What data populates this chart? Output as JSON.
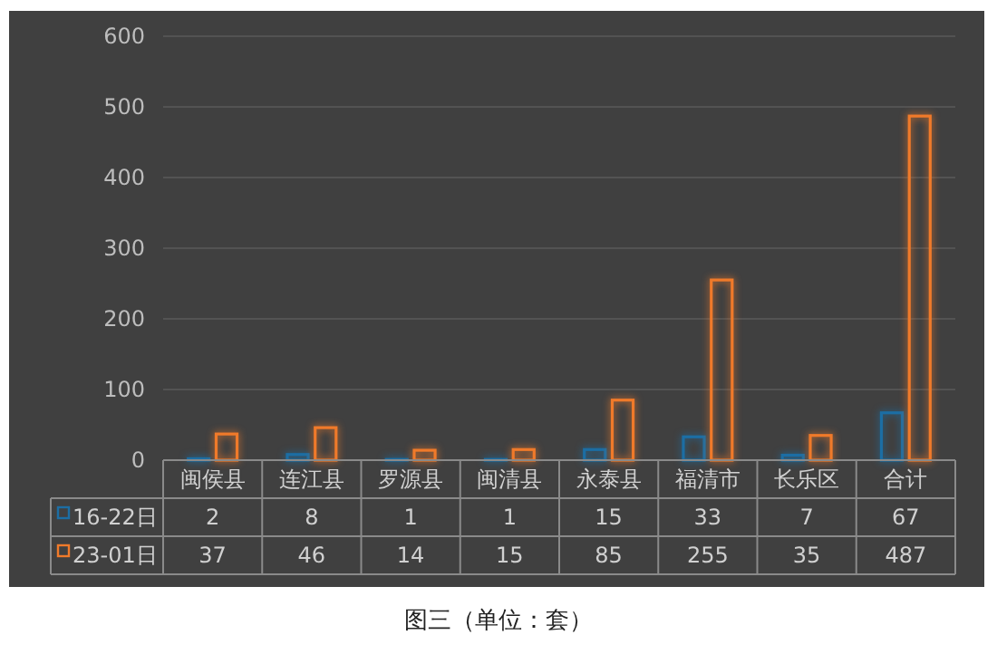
{
  "chart_data": {
    "type": "bar",
    "categories": [
      "闽侯县",
      "连江县",
      "罗源县",
      "闽清县",
      "永泰县",
      "福清市",
      "长乐区",
      "合计"
    ],
    "series": [
      {
        "name": "16-22日",
        "color": "#1c6ea4",
        "values": [
          2,
          8,
          1,
          1,
          15,
          33,
          7,
          67
        ]
      },
      {
        "name": "23-01日",
        "color": "#f07a2a",
        "values": [
          37,
          46,
          14,
          15,
          85,
          255,
          35,
          487
        ]
      }
    ],
    "ylim": [
      0,
      600
    ],
    "yticks": [
      0,
      100,
      200,
      300,
      400,
      500,
      600
    ],
    "grid": "y",
    "legend": "bottom",
    "data_labels": true,
    "annotations": [
      "图三（单位：套）"
    ]
  }
}
